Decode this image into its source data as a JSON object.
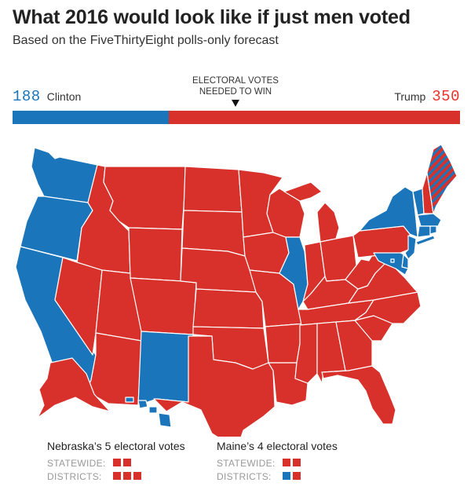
{
  "header": {
    "title": "What 2016 would look like if just men voted",
    "subtitle": "Based on the FiveThirtyEight polls-only forecast"
  },
  "electoral": {
    "needed_line1": "ELECTORAL VOTES",
    "needed_line2": "NEEDED TO WIN",
    "needed_value": 270,
    "total": 538,
    "clinton": {
      "name": "Clinton",
      "votes": "188",
      "value": 188,
      "color": "#1a75bb"
    },
    "trump": {
      "name": "Trump",
      "votes": "350",
      "value": 350,
      "color": "#d8302a"
    }
  },
  "map": {
    "colors": {
      "dem": "#1a75bb",
      "rep": "#d8302a",
      "border": "#ffffff"
    },
    "clinton_states": [
      "WA",
      "OR",
      "CA",
      "NM",
      "IL",
      "NY",
      "VT",
      "MA",
      "CT",
      "RI",
      "NJ",
      "DE",
      "MD",
      "DC",
      "HI"
    ],
    "trump_states": [
      "ID",
      "MT",
      "WY",
      "NV",
      "UT",
      "AZ",
      "CO",
      "ND",
      "SD",
      "NE",
      "KS",
      "OK",
      "TX",
      "MN",
      "IA",
      "MO",
      "AR",
      "LA",
      "WI",
      "MI",
      "IN",
      "OH",
      "KY",
      "TN",
      "MS",
      "AL",
      "GA",
      "FL",
      "SC",
      "NC",
      "VA",
      "WV",
      "PA",
      "NH",
      "AK"
    ],
    "split_states": [
      "ME"
    ]
  },
  "legend": {
    "nebraska": {
      "title": "Nebraska’s 5 electoral votes",
      "statewide_label": "STATEWIDE:",
      "statewide": [
        "rep",
        "rep"
      ],
      "districts_label": "DISTRICTS:",
      "districts": [
        "rep",
        "rep",
        "rep"
      ]
    },
    "maine": {
      "title": "Maine’s 4 electoral votes",
      "statewide_label": "STATEWIDE:",
      "statewide": [
        "rep",
        "rep"
      ],
      "districts_label": "DISTRICTS:",
      "districts": [
        "dem",
        "rep"
      ]
    }
  }
}
